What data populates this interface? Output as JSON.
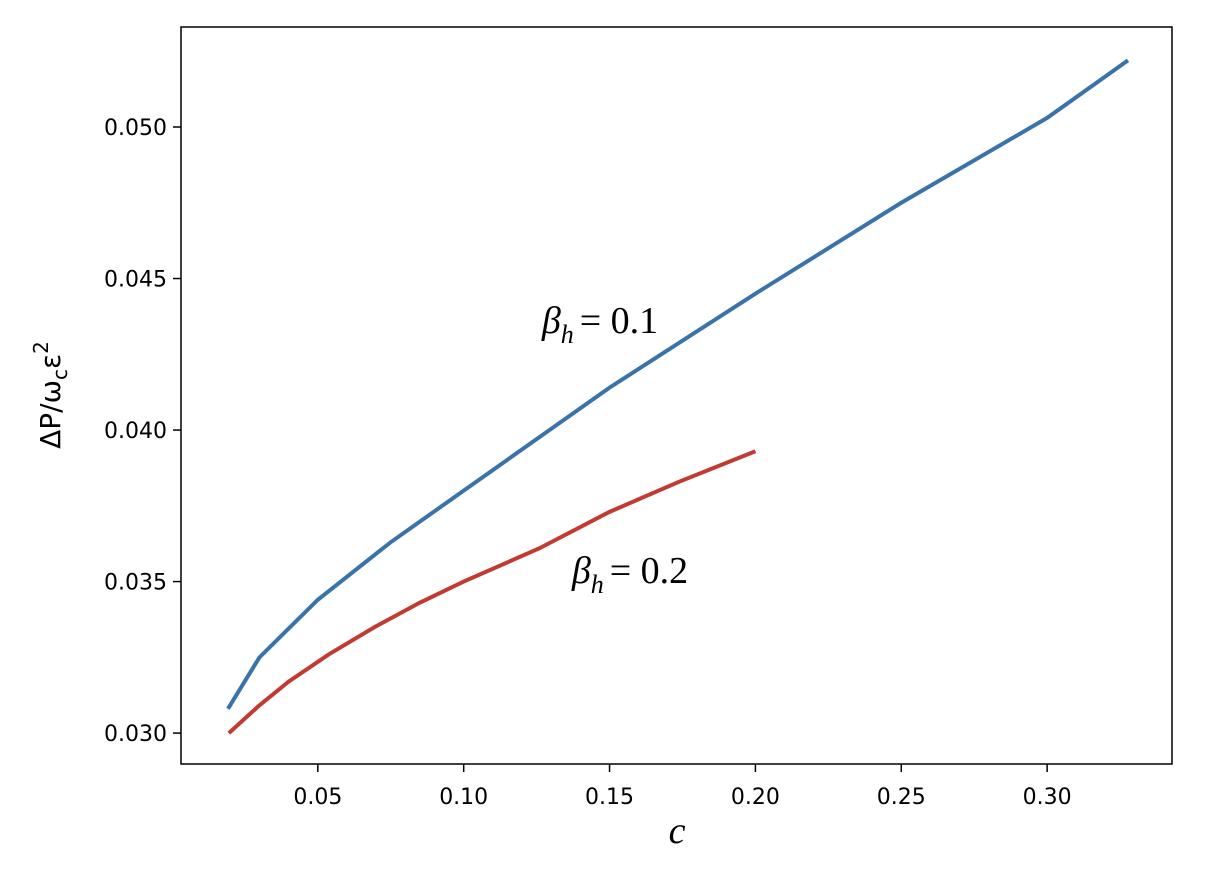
{
  "chart_data": {
    "type": "line",
    "xlabel": "c",
    "ylabel": [
      "ΔP/ω",
      "c",
      "ε",
      "2"
    ],
    "annotations": [
      {
        "symbol": "β",
        "subscript": "h",
        "text": "= 0.1"
      },
      {
        "symbol": "β",
        "subscript": "h",
        "text": "= 0.2"
      }
    ],
    "xlim": [
      0.0031,
      0.3428
    ],
    "ylim": [
      0.02898,
      0.0533
    ],
    "xticks": [
      0.05,
      {
        "value": 0.1,
        "label": "0.10"
      },
      0.15,
      {
        "value": 0.2,
        "label": "0.20"
      },
      0.25,
      {
        "value": 0.3,
        "label": "0.30"
      }
    ],
    "yticks": [
      {
        "value": 0.03,
        "label": "0.030"
      },
      0.035,
      {
        "value": 0.04,
        "label": "0.040"
      },
      0.045,
      {
        "value": 0.05,
        "label": "0.050"
      }
    ],
    "series": [
      {
        "color": "#3a72aa",
        "x": [
          0.0192,
          0.03,
          0.05,
          0.075,
          0.1,
          0.15,
          0.2,
          0.25,
          0.3,
          0.3277
        ],
        "values": [
          0.0308,
          0.0325,
          0.0344,
          0.0363,
          0.038,
          0.0414,
          0.0445,
          0.0475,
          0.0503,
          0.0522
        ]
      },
      {
        "color": "#c23b33",
        "x": [
          0.0195,
          0.0298,
          0.04,
          0.0538,
          0.0695,
          0.0849,
          0.1,
          0.126,
          0.15,
          0.174,
          0.2
        ],
        "values": [
          0.03,
          0.0309,
          0.0317,
          0.0326,
          0.0335,
          0.0343,
          0.035,
          0.0361,
          0.0373,
          0.0383,
          0.0393
        ]
      }
    ]
  }
}
